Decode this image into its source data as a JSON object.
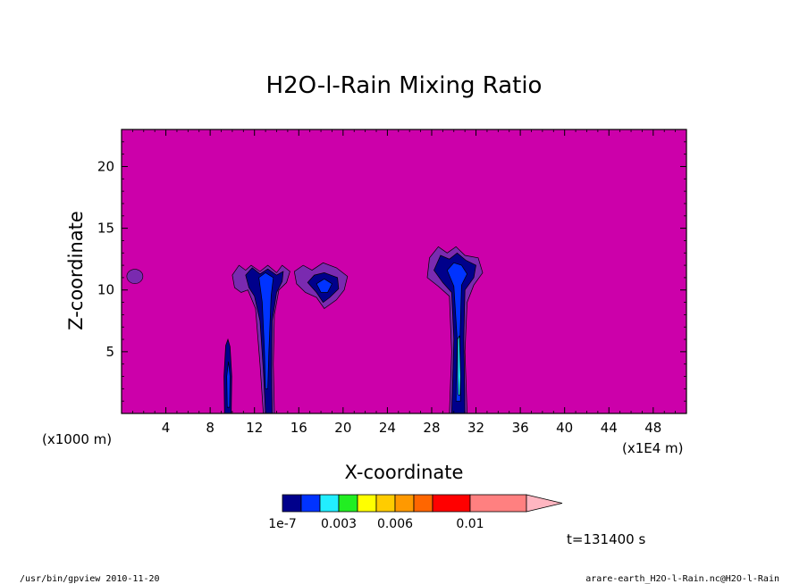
{
  "chart_data": {
    "type": "contour",
    "title": "H2O-l-Rain Mixing Ratio",
    "xlabel": "X-coordinate",
    "ylabel": "Z-coordinate",
    "x_unit": "(x1E4 m)",
    "y_unit": "(x1000 m)",
    "xlim": [
      0,
      51
    ],
    "ylim": [
      0,
      23
    ],
    "x_ticks": [
      {
        "value": 4,
        "label": "4"
      },
      {
        "value": 8,
        "label": "8"
      },
      {
        "value": 12,
        "label": "12"
      },
      {
        "value": 16,
        "label": "16"
      },
      {
        "value": 20,
        "label": "20"
      },
      {
        "value": 24,
        "label": "24"
      },
      {
        "value": 28,
        "label": "28"
      },
      {
        "value": 32,
        "label": "32"
      },
      {
        "value": 36,
        "label": "36"
      },
      {
        "value": 40,
        "label": "40"
      },
      {
        "value": 44,
        "label": "44"
      },
      {
        "value": 48,
        "label": "48"
      }
    ],
    "y_ticks": [
      {
        "value": 5,
        "label": "5"
      },
      {
        "value": 10,
        "label": "10"
      },
      {
        "value": 15,
        "label": "15"
      },
      {
        "value": 20,
        "label": "20"
      }
    ],
    "background_color": "#cc00aa",
    "colorbar": {
      "colors": [
        "#00008b",
        "#0033ff",
        "#22eeff",
        "#22ee22",
        "#ffff00",
        "#ffcc00",
        "#ff9900",
        "#ff6600",
        "#ff0000",
        "#ff8080",
        "#ffb6c1"
      ],
      "labels": [
        "1e-7",
        "0.003",
        "0.006",
        "0.01"
      ]
    },
    "features": [
      {
        "name": "small-cloud",
        "x": 1.2,
        "z": 11.1,
        "level": "trace"
      },
      {
        "name": "shaft-a",
        "x": 9.6,
        "z_top": 6.0,
        "level": "low"
      },
      {
        "name": "tower-b",
        "x": 13.0,
        "z_top": 12.0,
        "level": "low"
      },
      {
        "name": "cloud-c",
        "x": 18.0,
        "z_top": 12.0,
        "level": "low"
      },
      {
        "name": "tower-d",
        "x": 30.4,
        "z_top": 13.5,
        "level": "low-to-mid"
      }
    ]
  },
  "annotations": {
    "time": "t=131400 s",
    "footer_left": "/usr/bin/gpview   2010-11-20",
    "footer_right": "arare-earth_H2O-l-Rain.nc@H2O-l-Rain"
  }
}
